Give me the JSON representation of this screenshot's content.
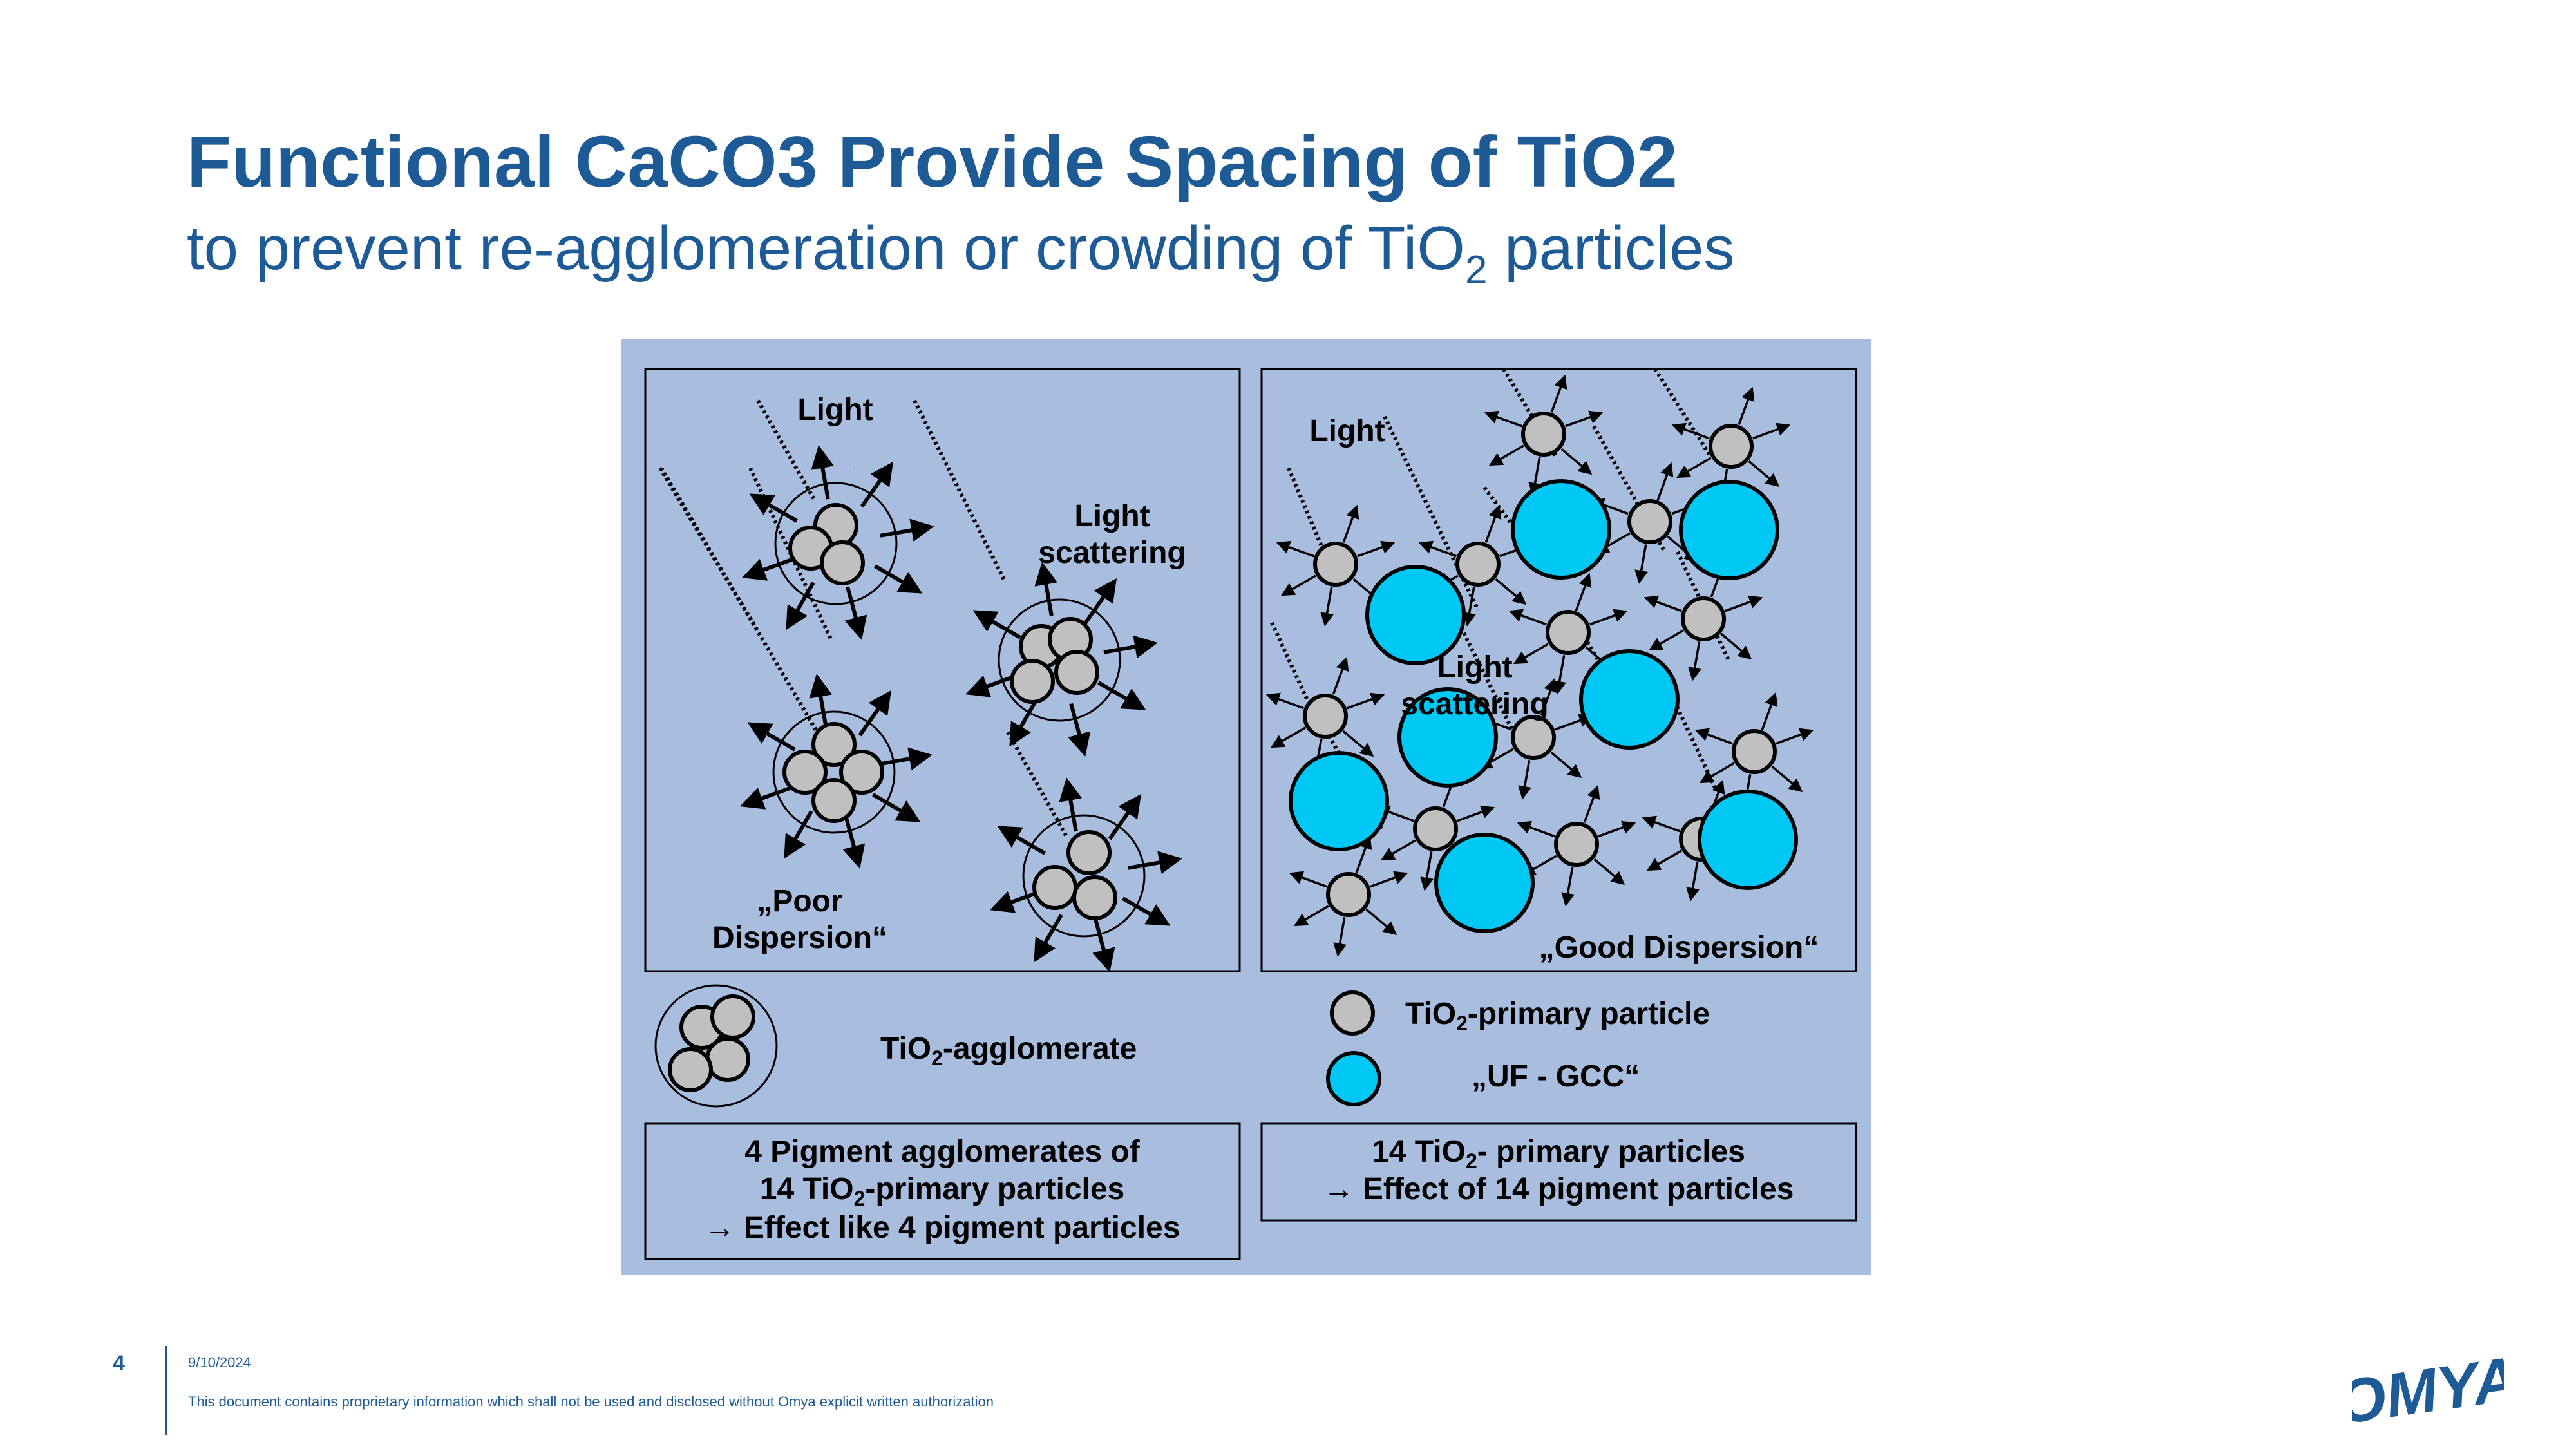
{
  "slide": {
    "title": "Functional CaCO3 Provide Spacing of TiO2",
    "subtitle_main": "to prevent re-agglomeration or crowding of TiO",
    "subtitle_sub": "2",
    "subtitle_end": " particles"
  },
  "diagram": {
    "left_panel": {
      "light_label": "Light",
      "scattering_line1": "Light",
      "scattering_line2": "scattering",
      "dispersion_line1": "„Poor",
      "dispersion_line2": "Dispersion“"
    },
    "right_panel": {
      "light_label": "Light",
      "scattering_line1": "Light",
      "scattering_line2": "scattering",
      "dispersion_label": "„Good Dispersion“"
    },
    "legend": {
      "agglomerate_pre": "TiO",
      "agglomerate_sub": "2",
      "agglomerate_post": "-agglomerate",
      "primary_pre": "TiO",
      "primary_sub": "2",
      "primary_post": "-primary particle",
      "ufgcc": "„UF - GCC“"
    },
    "left_summary": {
      "line1": "4 Pigment agglomerates of",
      "line2_pre": "14 TiO",
      "line2_sub": "2",
      "line2_post": "-primary particles",
      "line3": "→ Effect like 4 pigment particles"
    },
    "right_summary": {
      "line1_pre": "14 TiO",
      "line1_sub": "2",
      "line1_post": "- primary particles",
      "line2": "→ Effect of 14 pigment particles"
    },
    "colors": {
      "background": "#a9bedf",
      "primary_particle": "#c0c0c0",
      "uf_gcc": "#00c8f5",
      "title": "#1e5a96"
    }
  },
  "footer": {
    "page_number": "4",
    "date": "9/10/2024",
    "note": "This document contains proprietary information which shall not be used and disclosed without Omya explicit written authorization",
    "logo_text": "OMYA"
  }
}
